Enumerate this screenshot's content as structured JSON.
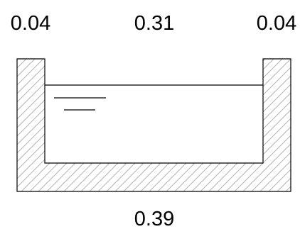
{
  "dimensions": {
    "left_wall_thickness": "0.04",
    "inner_width": "0.31",
    "right_wall_thickness": "0.04",
    "outer_width": "0.39"
  },
  "colors": {
    "line": "#000000",
    "hatch": "#b3b3b3",
    "background": "#ffffff"
  }
}
